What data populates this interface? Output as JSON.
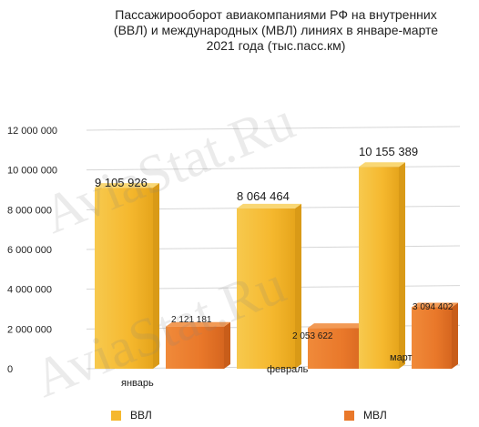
{
  "chart_data": {
    "type": "bar",
    "title_lines": [
      "Пассажирооборот авиакомпаниями РФ на внутренних",
      "(ВВЛ) и международных (МВЛ) линиях в январе-марте",
      "2021 года (тыс.пасс.км)"
    ],
    "categories": [
      "январь",
      "февраль",
      "март"
    ],
    "series": [
      {
        "name": "ВВЛ",
        "values": [
          9105926,
          8064464,
          10155389
        ],
        "labels": [
          "9 105 926",
          "8 064 464",
          "10 155 389"
        ],
        "color": "#f5b82e"
      },
      {
        "name": "МВЛ",
        "values": [
          2121181,
          2053622,
          3094402
        ],
        "labels": [
          "2 121 181",
          "2 053 622",
          "3 094 402"
        ],
        "color": "#e9782a"
      }
    ],
    "y_ticks": [
      0,
      2000000,
      4000000,
      6000000,
      8000000,
      10000000,
      12000000
    ],
    "y_tick_labels": [
      "0",
      "2 000 000",
      "4 000 000",
      "6 000 000",
      "8 000 000",
      "10 000 000",
      "12 000 000"
    ],
    "ylim": [
      0,
      12000000
    ],
    "grid": true,
    "legend_position": "bottom",
    "style": "3d-bars"
  },
  "watermark": "AviaStat.Ru"
}
